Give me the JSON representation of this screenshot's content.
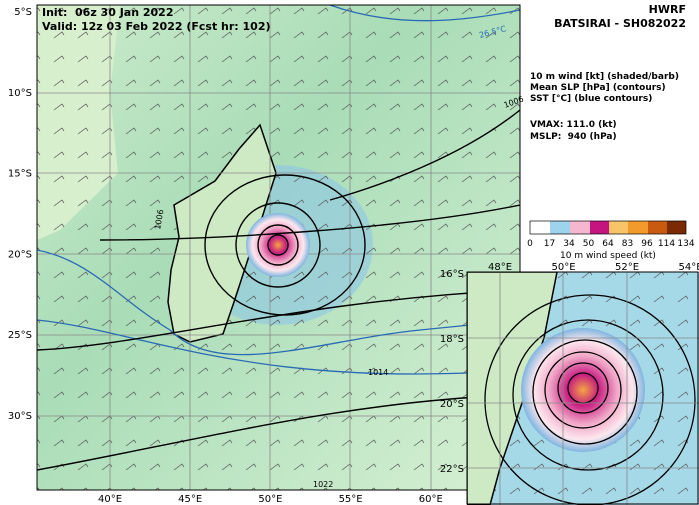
{
  "header": {
    "init": "Init:  06z 30 Jan 2022",
    "valid": "Valid: 12z 03 Feb 2022 (Fcst hr: 102)",
    "model": "HWRF",
    "storm": "BATSIRAI - SH082022"
  },
  "legend": {
    "lines": [
      "10 m wind [kt] (shaded/barb)",
      "Mean SLP [hPa] (contours)",
      "SST [°C] (blue contours)"
    ],
    "vmax": "VMAX: 111.0 (kt)",
    "mslp": "MSLP:  940 (hPa)"
  },
  "colorbar": {
    "ticks": [
      "0",
      "17",
      "34",
      "50",
      "64",
      "83",
      "96",
      "114",
      "134"
    ],
    "label": "10 m wind speed (kt)"
  },
  "map": {
    "lat_labels": [
      "5°S",
      "10°S",
      "15°S",
      "20°S",
      "25°S",
      "30°S"
    ],
    "lon_labels": [
      "40°E",
      "45°E",
      "50°E",
      "55°E",
      "60°E"
    ],
    "contour_labels": [
      "1006",
      "1006",
      "1014",
      "1022",
      "26.5°C"
    ]
  },
  "inset": {
    "lat_labels": [
      "16°S",
      "18°S",
      "20°S",
      "22°S"
    ],
    "lon_labels": [
      "48°E",
      "50°E",
      "52°E",
      "54°E"
    ]
  }
}
